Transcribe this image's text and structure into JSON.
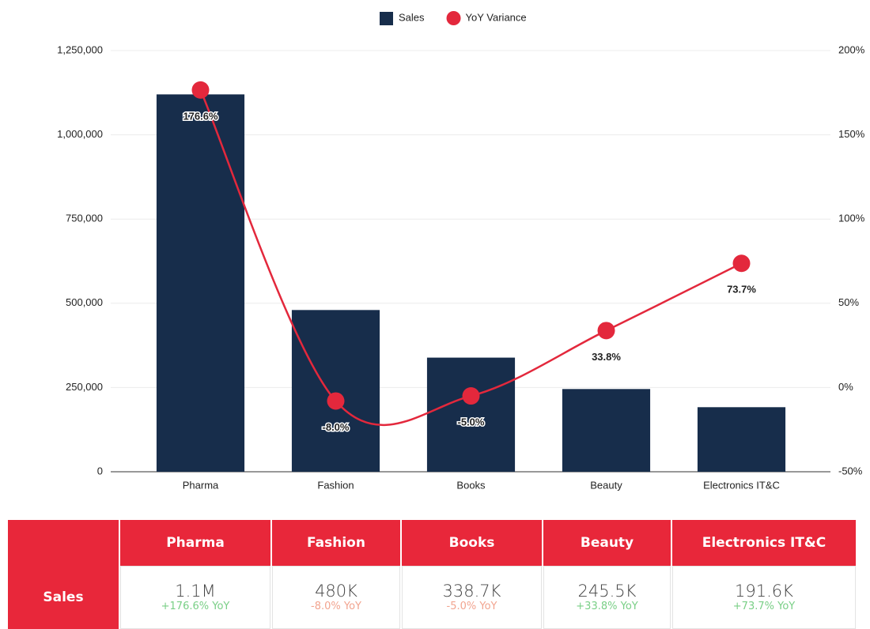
{
  "chart_data": {
    "type": "combo",
    "categories": [
      "Pharma",
      "Fashion",
      "Books",
      "Beauty",
      "Electronics IT&C"
    ],
    "series": [
      {
        "name": "Sales",
        "type": "bar",
        "color": "#172d4b",
        "values": [
          1120000,
          480000,
          338700,
          245500,
          191600
        ]
      },
      {
        "name": "YoY Variance",
        "type": "line",
        "axis": "y2",
        "color": "#e3283c",
        "values": [
          176.6,
          -8.0,
          -5.0,
          33.8,
          73.7
        ],
        "value_labels": [
          "176.6%",
          "-8.0%",
          "-5.0%",
          "33.8%",
          "73.7%"
        ]
      }
    ],
    "ylim": [
      0,
      1250000
    ],
    "yticks": [
      0,
      {
        "value": 250000,
        "label": "250,000"
      },
      {
        "value": 500000,
        "label": "500,000"
      },
      {
        "value": 750000,
        "label": "750,000"
      },
      {
        "value": 1000000,
        "label": "1,000,000"
      },
      {
        "value": 1250000,
        "label": "1,250,000"
      }
    ],
    "y2lim": [
      -50,
      200
    ],
    "y2ticks": [
      {
        "value": -50,
        "label": "-50%"
      },
      {
        "value": 0,
        "label": "0%"
      },
      {
        "value": 50,
        "label": "50%"
      },
      {
        "value": 100,
        "label": "100%"
      },
      {
        "value": 150,
        "label": "150%"
      },
      {
        "value": 200,
        "label": "200%"
      }
    ],
    "grid": true,
    "legend": "top"
  },
  "table": {
    "header": [
      "Pharma",
      "Fashion",
      "Books",
      "Beauty",
      "Electronics IT&C"
    ],
    "rows": [
      {
        "label": "Sales",
        "cells": [
          {
            "value": "1.1M",
            "change": "+176.6% YoY",
            "color": "#79cf86"
          },
          {
            "value": "480K",
            "change": "-8.0% YoY",
            "color": "#f2a48f"
          },
          {
            "value": "338.7K",
            "change": "-5.0% YoY",
            "color": "#f2a48f"
          },
          {
            "value": "245.5K",
            "change": "+33.8% YoY",
            "color": "#79cf86"
          },
          {
            "value": "191.6K",
            "change": "+73.7% YoY",
            "color": "#79cf86"
          }
        ]
      }
    ]
  }
}
